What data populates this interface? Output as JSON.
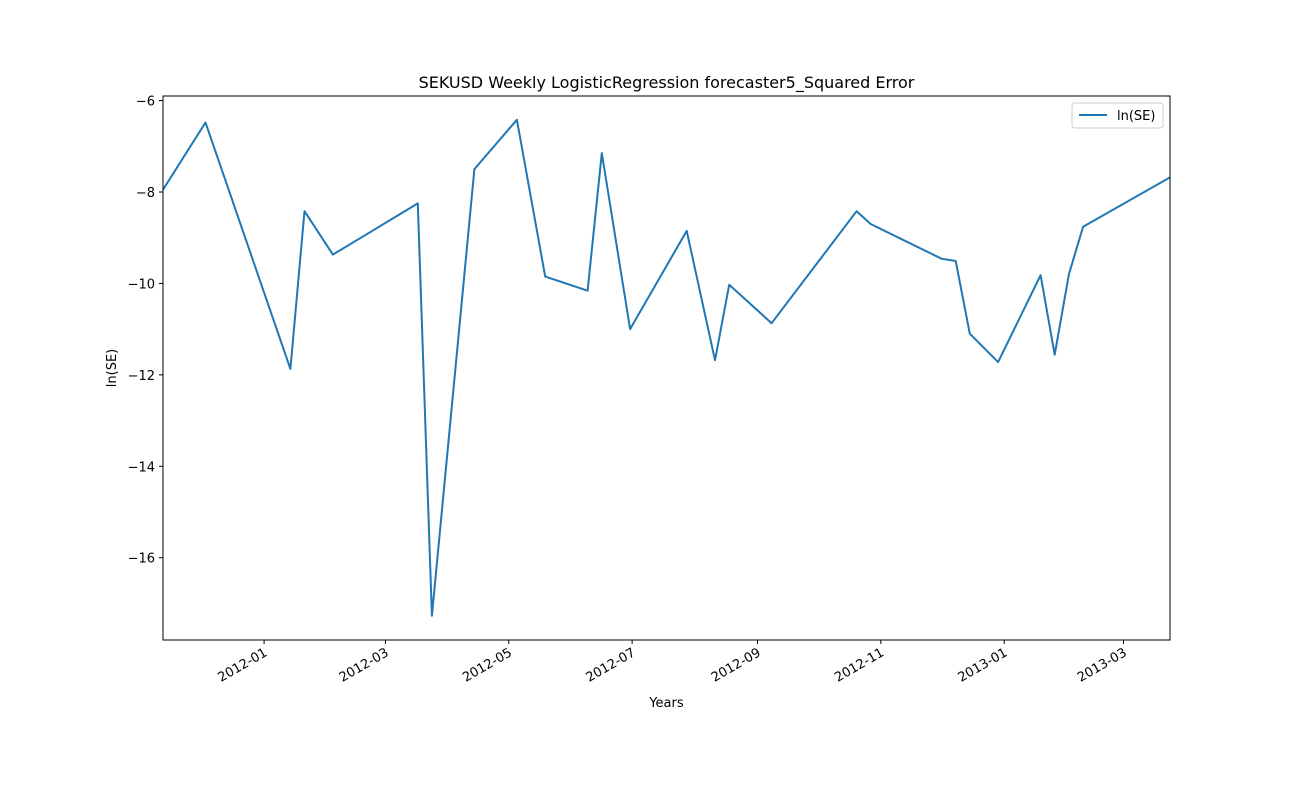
{
  "chart_data": {
    "type": "line",
    "title": "SEKUSD Weekly LogisticRegression forecaster5_Squared Error",
    "xlabel": "Years",
    "ylabel": "ln(SE)",
    "legend_position": "top-right",
    "grid": false,
    "line_color": "#1f77b4",
    "xlim": [
      "2011-11-12",
      "2013-03-24"
    ],
    "ylim": [
      -17.8,
      -5.9
    ],
    "x_ticks": [
      {
        "date": "2012-01-01",
        "label": "2012-01"
      },
      {
        "date": "2012-03-01",
        "label": "2012-03"
      },
      {
        "date": "2012-05-01",
        "label": "2012-05"
      },
      {
        "date": "2012-07-01",
        "label": "2012-07"
      },
      {
        "date": "2012-09-01",
        "label": "2012-09"
      },
      {
        "date": "2012-11-01",
        "label": "2012-11"
      },
      {
        "date": "2013-01-01",
        "label": "2013-01"
      },
      {
        "date": "2013-03-01",
        "label": "2013-03"
      }
    ],
    "y_ticks": [
      {
        "value": -16,
        "label": "−16"
      },
      {
        "value": -14,
        "label": "−14"
      },
      {
        "value": -12,
        "label": "−12"
      },
      {
        "value": -10,
        "label": "−10"
      },
      {
        "value": -8,
        "label": "−8"
      },
      {
        "value": -6,
        "label": "−6"
      }
    ],
    "series": [
      {
        "name": "ln(SE)",
        "x": [
          "2011-11-12",
          "2011-12-03",
          "2012-01-14",
          "2012-01-21",
          "2012-02-04",
          "2012-03-17",
          "2012-03-24",
          "2012-04-14",
          "2012-05-05",
          "2012-05-19",
          "2012-06-09",
          "2012-06-16",
          "2012-06-30",
          "2012-07-28",
          "2012-08-11",
          "2012-08-18",
          "2012-09-08",
          "2012-10-20",
          "2012-10-27",
          "2012-12-01",
          "2012-12-08",
          "2012-12-15",
          "2012-12-29",
          "2013-01-19",
          "2013-01-26",
          "2013-02-02",
          "2013-02-09",
          "2013-03-24"
        ],
        "values": [
          -7.95,
          -6.48,
          -11.87,
          -8.42,
          -9.37,
          -8.25,
          -17.27,
          -7.5,
          -6.42,
          -9.85,
          -10.16,
          -7.15,
          -11.0,
          -8.85,
          -11.68,
          -10.03,
          -10.87,
          -8.42,
          -8.7,
          -9.46,
          -9.51,
          -11.1,
          -11.72,
          -9.82,
          -11.56,
          -9.8,
          -8.76,
          -7.68
        ]
      }
    ]
  }
}
